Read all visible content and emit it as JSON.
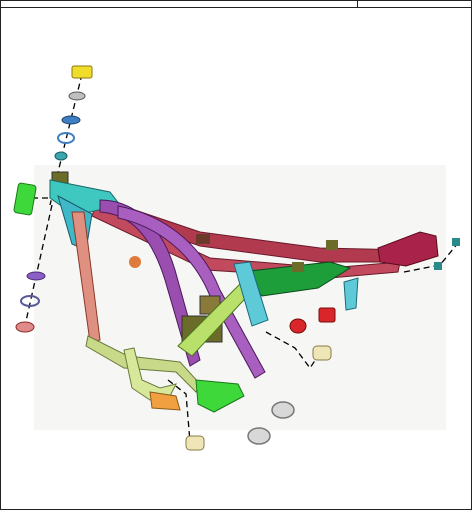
{
  "diagram": {
    "kind": "exploded-parts-view",
    "subject": "motorcycle-frame",
    "background": "#ffffff",
    "colors": {
      "main_frame": "#b23a4f",
      "down_tube": "#9a4fb0",
      "head_bracket": "#3fc8c0",
      "cradle": "#c9d98a",
      "engine_mount": "#6b6b2a",
      "tail_green": "#1e9e3a",
      "tail_cyan": "#5ecad8",
      "seat_bracket": "#a8224a",
      "red_part": "#d8262a",
      "yellow_nut": "#f0dc2a",
      "green_plate": "#3ed83a",
      "leader_line": "#000000"
    }
  }
}
